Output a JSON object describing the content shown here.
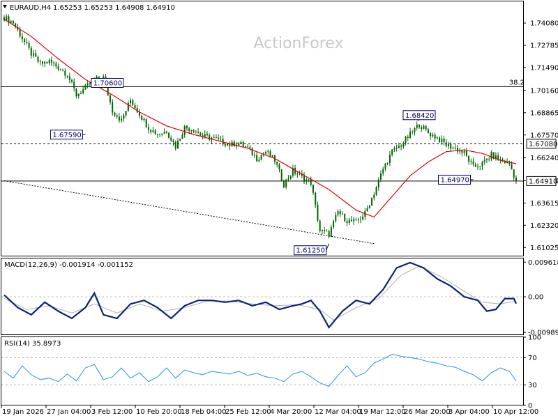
{
  "header": {
    "symbol": "EURAUD,H4",
    "ohlc": "1.65253 1.65253 1.64908 1.64910"
  },
  "watermark": "ActionForex",
  "colors": {
    "candle": "#006400",
    "ma": "#e00000",
    "macd_main": "#0b1f7a",
    "macd_signal": "#b0b0b0",
    "rsi": "#1e90ff",
    "trendline": "#000000",
    "level_line": "#000000",
    "label_border": "#000066"
  },
  "chart_data": [
    {
      "type": "candlestick",
      "title": "EURAUD,H4",
      "ylim": [
        1.6051,
        1.7534
      ],
      "y_ticks": [
        "1.74080",
        "1.72785",
        "1.71490",
        "1.70160",
        "1.68865",
        "1.67570",
        "1.66240",
        "1.64910",
        "1.63615",
        "1.62320",
        "1.61025"
      ],
      "x_ticks": [
        "19 Jan 2026",
        "27 Jan 04:00",
        "3 Feb 12:00",
        "10 Feb 20:00",
        "18 Feb 04:00",
        "25 Feb 12:00",
        "4 Mar 20:00",
        "12 Mar 04:00",
        "19 Mar 12:00",
        "26 Mar 20:00",
        "3 Apr 04:00",
        "10 Apr 12:00"
      ],
      "close_path": [
        [
          0,
          1.744
        ],
        [
          4,
          1.741
        ],
        [
          8,
          1.732
        ],
        [
          12,
          1.723
        ],
        [
          16,
          1.717
        ],
        [
          20,
          1.7185
        ],
        [
          24,
          1.715
        ],
        [
          28,
          1.711
        ],
        [
          32,
          1.699
        ],
        [
          36,
          1.703
        ],
        [
          40,
          1.708
        ],
        [
          44,
          1.709
        ],
        [
          48,
          1.69
        ],
        [
          52,
          1.684
        ],
        [
          56,
          1.696
        ],
        [
          60,
          1.688
        ],
        [
          64,
          1.68
        ],
        [
          68,
          1.676
        ],
        [
          72,
          1.678
        ],
        [
          76,
          1.669
        ],
        [
          80,
          1.68
        ],
        [
          84,
          1.679
        ],
        [
          88,
          1.675
        ],
        [
          92,
          1.674
        ],
        [
          96,
          1.672
        ],
        [
          100,
          1.67
        ],
        [
          104,
          1.671
        ],
        [
          108,
          1.668
        ],
        [
          112,
          1.662
        ],
        [
          116,
          1.666
        ],
        [
          120,
          1.661
        ],
        [
          124,
          1.647
        ],
        [
          128,
          1.655
        ],
        [
          132,
          1.651
        ],
        [
          136,
          1.648
        ],
        [
          140,
          1.62
        ],
        [
          144,
          1.618
        ],
        [
          148,
          1.631
        ],
        [
          152,
          1.626
        ],
        [
          156,
          1.625
        ],
        [
          160,
          1.63
        ],
        [
          164,
          1.642
        ],
        [
          168,
          1.656
        ],
        [
          172,
          1.666
        ],
        [
          176,
          1.67
        ],
        [
          180,
          1.676
        ],
        [
          184,
          1.682
        ],
        [
          188,
          1.677
        ],
        [
          192,
          1.674
        ],
        [
          196,
          1.67
        ],
        [
          200,
          1.668
        ],
        [
          204,
          1.665
        ],
        [
          208,
          1.657
        ],
        [
          212,
          1.659
        ],
        [
          216,
          1.664
        ],
        [
          220,
          1.661
        ],
        [
          224,
          1.659
        ],
        [
          227,
          1.6491
        ]
      ],
      "ma_path": [
        [
          0,
          1.743
        ],
        [
          12,
          1.733
        ],
        [
          24,
          1.72
        ],
        [
          36,
          1.708
        ],
        [
          48,
          1.699
        ],
        [
          60,
          1.689
        ],
        [
          72,
          1.681
        ],
        [
          84,
          1.676
        ],
        [
          96,
          1.672
        ],
        [
          108,
          1.668
        ],
        [
          120,
          1.662
        ],
        [
          132,
          1.653
        ],
        [
          144,
          1.644
        ],
        [
          156,
          1.632
        ],
        [
          164,
          1.628
        ],
        [
          172,
          1.64
        ],
        [
          180,
          1.652
        ],
        [
          188,
          1.66
        ],
        [
          196,
          1.666
        ],
        [
          204,
          1.667
        ],
        [
          212,
          1.665
        ],
        [
          220,
          1.661
        ],
        [
          227,
          1.659
        ]
      ],
      "level_lines": [
        {
          "value": 1.704,
          "style": "solid",
          "tag": "38.2"
        },
        {
          "value": 1.6708,
          "style": "dotted",
          "axis_label": "1.67080"
        },
        {
          "value": 1.6491,
          "style": "solid",
          "axis_label": "1.64910"
        }
      ],
      "trendline": {
        "start": [
          0,
          1.6491
        ],
        "end": [
          164,
          1.6125
        ]
      },
      "annotations": [
        {
          "label": "1.70600",
          "bar": 38,
          "value": 1.706
        },
        {
          "label": "1.67590",
          "bar": 36,
          "value": 1.6759
        },
        {
          "label": "1.68420",
          "bar": 184,
          "value": 1.6842
        },
        {
          "label": "1.64970",
          "bar": 208,
          "value": 1.6497
        },
        {
          "label": "1.61250",
          "bar": 144,
          "value": 1.6125
        }
      ]
    },
    {
      "type": "line",
      "title": "MACD(12,26,9) -0.001914 -0.001152",
      "ylim": [
        -0.01064,
        0.01064
      ],
      "y_ticks": [
        "0.009618",
        "0.00",
        "-0.009892"
      ],
      "main_path": [
        [
          0,
          0.0005
        ],
        [
          6,
          -0.003
        ],
        [
          12,
          -0.005
        ],
        [
          18,
          -0.0015
        ],
        [
          24,
          -0.004
        ],
        [
          30,
          -0.006
        ],
        [
          36,
          -0.003
        ],
        [
          40,
          0.001
        ],
        [
          44,
          -0.005
        ],
        [
          50,
          -0.006
        ],
        [
          56,
          -0.002
        ],
        [
          62,
          -0.001
        ],
        [
          68,
          -0.003
        ],
        [
          74,
          -0.006
        ],
        [
          80,
          -0.0025
        ],
        [
          86,
          -0.001
        ],
        [
          92,
          -0.001
        ],
        [
          98,
          -0.0015
        ],
        [
          104,
          -0.001
        ],
        [
          110,
          -0.0025
        ],
        [
          116,
          -0.0015
        ],
        [
          122,
          -0.0035
        ],
        [
          128,
          -0.0025
        ],
        [
          132,
          -0.002
        ],
        [
          136,
          -0.001
        ],
        [
          140,
          -0.004
        ],
        [
          144,
          -0.0085
        ],
        [
          150,
          -0.004
        ],
        [
          156,
          -0.001
        ],
        [
          162,
          -0.002
        ],
        [
          168,
          0.002
        ],
        [
          174,
          0.008
        ],
        [
          180,
          0.0095
        ],
        [
          186,
          0.008
        ],
        [
          192,
          0.005
        ],
        [
          198,
          0.003
        ],
        [
          204,
          0.0
        ],
        [
          210,
          -0.001
        ],
        [
          214,
          -0.004
        ],
        [
          218,
          -0.0035
        ],
        [
          222,
          -0.0005
        ],
        [
          226,
          -0.0005
        ],
        [
          227,
          -0.0019
        ]
      ],
      "signal_path": [
        [
          0,
          -0.0005
        ],
        [
          10,
          -0.0035
        ],
        [
          20,
          -0.0025
        ],
        [
          30,
          -0.0045
        ],
        [
          40,
          -0.002
        ],
        [
          50,
          -0.0045
        ],
        [
          60,
          -0.002
        ],
        [
          70,
          -0.004
        ],
        [
          80,
          -0.003
        ],
        [
          90,
          -0.0012
        ],
        [
          100,
          -0.0012
        ],
        [
          110,
          -0.002
        ],
        [
          120,
          -0.0025
        ],
        [
          130,
          -0.0022
        ],
        [
          140,
          -0.0035
        ],
        [
          146,
          -0.0065
        ],
        [
          156,
          -0.003
        ],
        [
          166,
          -0.0005
        ],
        [
          176,
          0.006
        ],
        [
          184,
          0.0085
        ],
        [
          194,
          0.0055
        ],
        [
          204,
          0.0015
        ],
        [
          212,
          -0.0015
        ],
        [
          220,
          -0.002
        ],
        [
          227,
          -0.0012
        ]
      ]
    },
    {
      "type": "line",
      "title": "RSI(14) 35.8973",
      "ylim": [
        0,
        100
      ],
      "y_ticks": [
        "100",
        "70",
        "30",
        "0"
      ],
      "levels": [
        70,
        30
      ],
      "path": [
        [
          0,
          50
        ],
        [
          4,
          40
        ],
        [
          8,
          58
        ],
        [
          12,
          45
        ],
        [
          16,
          38
        ],
        [
          20,
          40
        ],
        [
          24,
          35
        ],
        [
          28,
          46
        ],
        [
          32,
          36
        ],
        [
          36,
          55
        ],
        [
          40,
          60
        ],
        [
          44,
          38
        ],
        [
          48,
          42
        ],
        [
          52,
          55
        ],
        [
          56,
          40
        ],
        [
          60,
          48
        ],
        [
          64,
          35
        ],
        [
          68,
          42
        ],
        [
          72,
          55
        ],
        [
          76,
          40
        ],
        [
          80,
          52
        ],
        [
          84,
          48
        ],
        [
          88,
          45
        ],
        [
          92,
          50
        ],
        [
          96,
          48
        ],
        [
          100,
          46
        ],
        [
          104,
          50
        ],
        [
          108,
          44
        ],
        [
          112,
          47
        ],
        [
          116,
          42
        ],
        [
          120,
          40
        ],
        [
          124,
          35
        ],
        [
          128,
          46
        ],
        [
          132,
          50
        ],
        [
          136,
          42
        ],
        [
          140,
          33
        ],
        [
          144,
          28
        ],
        [
          148,
          44
        ],
        [
          152,
          58
        ],
        [
          156,
          42
        ],
        [
          160,
          48
        ],
        [
          164,
          62
        ],
        [
          168,
          68
        ],
        [
          172,
          75
        ],
        [
          176,
          72
        ],
        [
          180,
          70
        ],
        [
          184,
          68
        ],
        [
          188,
          64
        ],
        [
          192,
          62
        ],
        [
          196,
          58
        ],
        [
          200,
          56
        ],
        [
          204,
          50
        ],
        [
          208,
          45
        ],
        [
          212,
          36
        ],
        [
          216,
          48
        ],
        [
          220,
          55
        ],
        [
          224,
          50
        ],
        [
          227,
          36
        ]
      ]
    }
  ]
}
